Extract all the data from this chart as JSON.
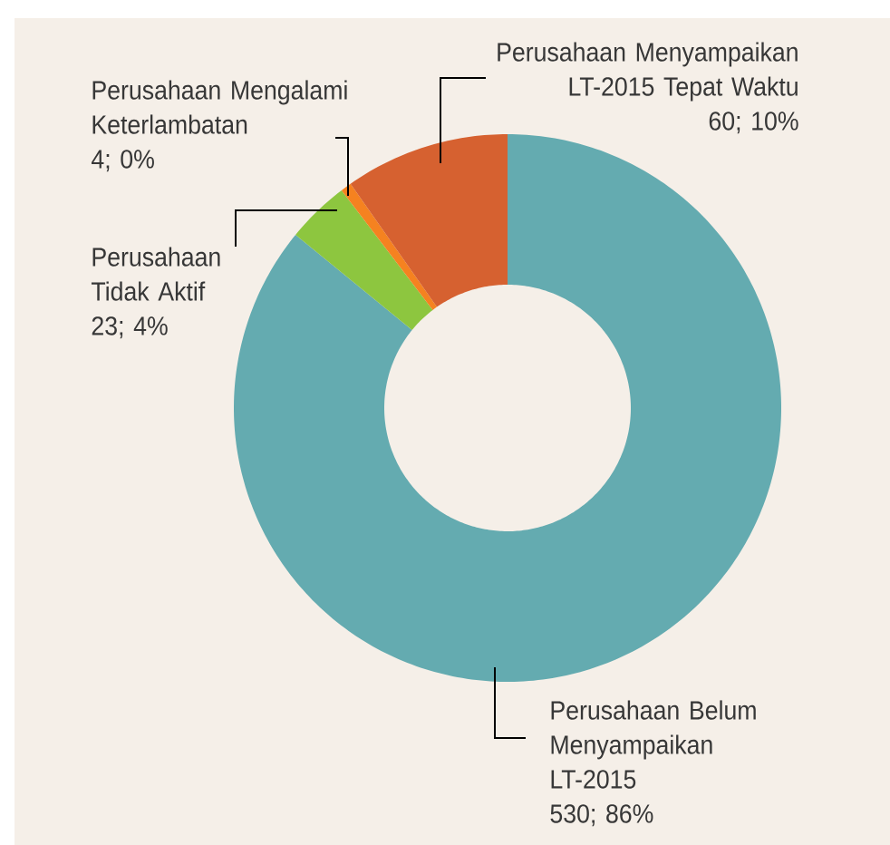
{
  "chart_data": {
    "type": "donut",
    "categories": [
      "Perusahaan Belum Menyampaikan LT-2015",
      "Perusahaan Tidak Aktif",
      "Perusahaan Mengalami Keterlambatan",
      "Perusahaan Menyampaikan LT-2015 Tepat Waktu"
    ],
    "values": [
      530,
      23,
      4,
      60
    ],
    "colors": [
      "#64abb0",
      "#8dc63f",
      "#f58220",
      "#d66130"
    ],
    "value_labels": [
      "530; 86%",
      "23; 4%",
      "4; 0%",
      "60; 10%"
    ]
  }
}
